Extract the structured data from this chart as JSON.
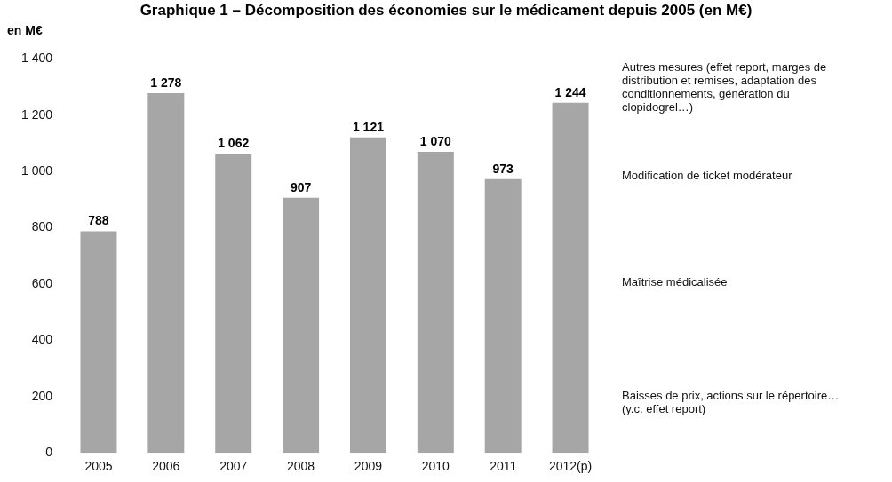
{
  "chart_data": {
    "type": "bar",
    "title": "Graphique 1 – Décomposition des économies sur le médicament depuis 2005 (en M€)",
    "ylabel": "en M€",
    "categories": [
      "2005",
      "2006",
      "2007",
      "2008",
      "2009",
      "2010",
      "2011",
      "2012(p)"
    ],
    "values": [
      788,
      1278,
      1062,
      907,
      1121,
      1070,
      973,
      1244
    ],
    "value_labels": [
      "788",
      "1 278",
      "1 062",
      "907",
      "1 121",
      "1 070",
      "973",
      "1 244"
    ],
    "color": "#a6a6a6",
    "ylim": [
      0,
      1400
    ],
    "yticks": [
      0,
      200,
      400,
      600,
      800,
      {
        "value": 1000,
        "label": "1 000"
      },
      {
        "value": 1200,
        "label": "1 200"
      },
      {
        "value": 1400,
        "label": "1 400"
      }
    ],
    "grid": false,
    "legend": false,
    "annotations": [
      "Autres mesures (effet report, marges de distribution et remises, adaptation des conditionnements, génération du clopidogrel…)",
      "Modification de ticket modérateur",
      "Maîtrise médicalisée",
      "Baisses de prix, actions sur le répertoire… (y.c. effet report)"
    ]
  }
}
